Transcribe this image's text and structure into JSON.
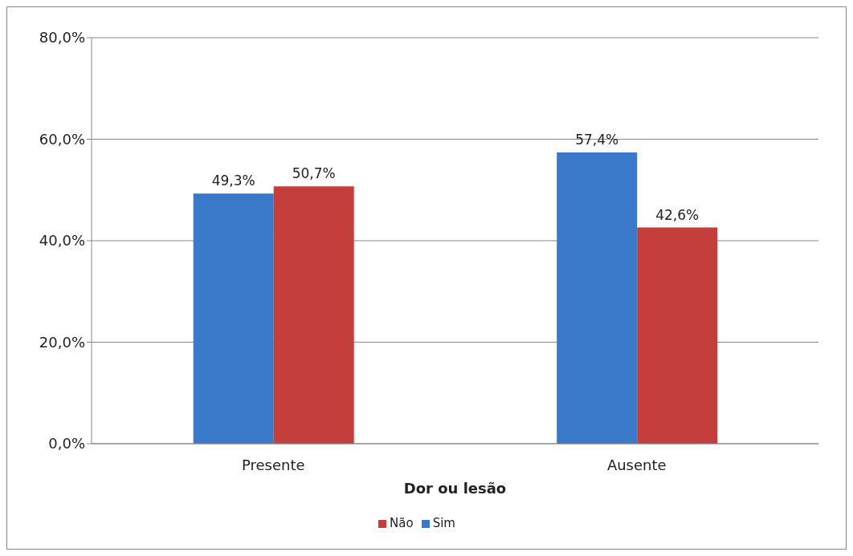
{
  "chart_data": {
    "type": "bar",
    "xlabel": "Dor ou lesão",
    "categories": [
      "Presente",
      "Ausente"
    ],
    "series": [
      {
        "name": "Sim",
        "color": "#3a78c9",
        "values": [
          49.3,
          57.4
        ],
        "value_labels": [
          "49,3%",
          "57,4%"
        ]
      },
      {
        "name": "Não",
        "color": "#c43f3b",
        "values": [
          50.7,
          42.6
        ],
        "value_labels": [
          "50,7%",
          "42,6%"
        ]
      }
    ],
    "ylim": [
      0,
      80
    ],
    "yticks": [
      {
        "value": 0,
        "label": "0,0%"
      },
      {
        "value": 20,
        "label": "20,0%"
      },
      {
        "value": 40,
        "label": "40,0%"
      },
      {
        "value": 60,
        "label": "60,0%"
      },
      {
        "value": 80,
        "label": "80,0%"
      }
    ],
    "grid": "y",
    "legend": "bottom"
  }
}
